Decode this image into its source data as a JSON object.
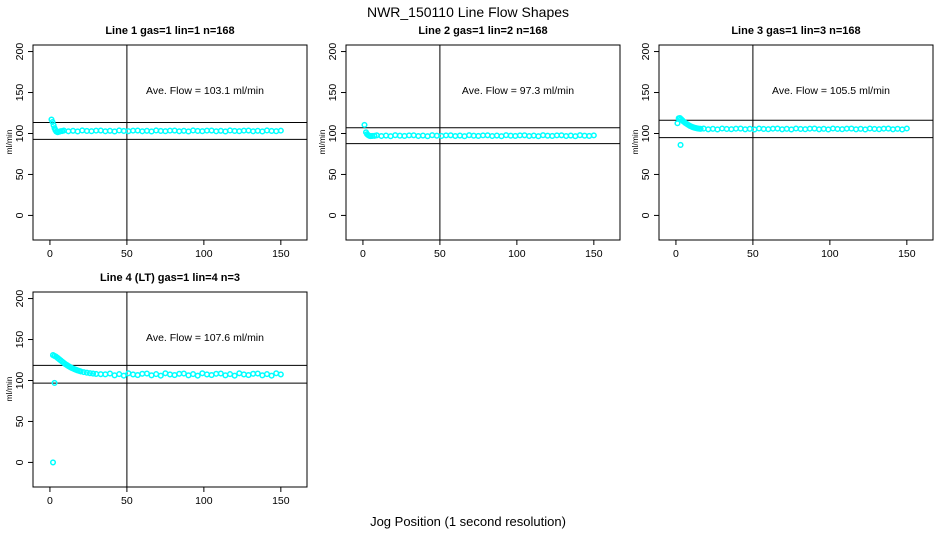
{
  "figure": {
    "title": "NWR_150110  Line Flow Shapes",
    "xlabel": "Jog Position (1 second resolution)",
    "background_color": "#ffffff",
    "point_color": "#00ffff",
    "axis_color": "#000000"
  },
  "chart_data": [
    {
      "type": "scatter",
      "title": "Line 1 gas=1 lin=1 n=168",
      "ylabel": "ml/min",
      "ave_label": "Ave. Flow =  103.1  ml/min",
      "ave_flow": 103.1,
      "n": 168,
      "ref_lines_y": [
        113.4,
        92.8
      ],
      "ref_line_x": 50,
      "xticks": [
        0,
        50,
        100,
        150
      ],
      "yticks": [
        0,
        50,
        100,
        150,
        200
      ],
      "xlim": [
        -11,
        167
      ],
      "ylim": [
        -30,
        208
      ],
      "points": [
        [
          1,
          117
        ],
        [
          1.7,
          114
        ],
        [
          2.4,
          110
        ],
        [
          3,
          106.5
        ],
        [
          3.6,
          104
        ],
        [
          4.2,
          102.3
        ],
        [
          5,
          101.6
        ],
        [
          6,
          102.2
        ],
        [
          7,
          102.8
        ],
        [
          8,
          103
        ],
        [
          9,
          103.6
        ],
        [
          12,
          102.7
        ],
        [
          15,
          103.3
        ],
        [
          18,
          102.5
        ],
        [
          21,
          103.7
        ],
        [
          24,
          103.1
        ],
        [
          27,
          102.8
        ],
        [
          30,
          103.5
        ],
        [
          33,
          103.6
        ],
        [
          36,
          102.7
        ],
        [
          39,
          103.3
        ],
        [
          42,
          102.5
        ],
        [
          45,
          103.7
        ],
        [
          48,
          103.1
        ],
        [
          51,
          102.8
        ],
        [
          54,
          103.5
        ],
        [
          57,
          103.6
        ],
        [
          60,
          102.7
        ],
        [
          63,
          103.3
        ],
        [
          66,
          102.5
        ],
        [
          69,
          103.7
        ],
        [
          72,
          103.1
        ],
        [
          75,
          102.8
        ],
        [
          78,
          103.5
        ],
        [
          81,
          103.6
        ],
        [
          84,
          102.7
        ],
        [
          87,
          103.3
        ],
        [
          90,
          102.5
        ],
        [
          93,
          103.7
        ],
        [
          96,
          103.1
        ],
        [
          99,
          102.8
        ],
        [
          102,
          103.5
        ],
        [
          105,
          103.6
        ],
        [
          108,
          102.7
        ],
        [
          111,
          103.3
        ],
        [
          114,
          102.5
        ],
        [
          117,
          103.7
        ],
        [
          120,
          103.1
        ],
        [
          123,
          102.8
        ],
        [
          126,
          103.5
        ],
        [
          129,
          103.6
        ],
        [
          132,
          102.7
        ],
        [
          135,
          103.3
        ],
        [
          138,
          102.5
        ],
        [
          141,
          103.7
        ],
        [
          144,
          103.1
        ],
        [
          147,
          102.8
        ],
        [
          150,
          103.5
        ]
      ]
    },
    {
      "type": "scatter",
      "title": "Line 2 gas=1 lin=2 n=168",
      "ylabel": "ml/min",
      "ave_label": "Ave. Flow =  97.3  ml/min",
      "ave_flow": 97.3,
      "n": 168,
      "ref_lines_y": [
        107.0,
        87.6
      ],
      "ref_line_x": 50,
      "xticks": [
        0,
        50,
        100,
        150
      ],
      "yticks": [
        0,
        50,
        100,
        150,
        200
      ],
      "xlim": [
        -11,
        167
      ],
      "ylim": [
        -30,
        208
      ],
      "points": [
        [
          1,
          110.5
        ],
        [
          2,
          101.5
        ],
        [
          2.7,
          99.2
        ],
        [
          3.4,
          98
        ],
        [
          4.2,
          97.2
        ],
        [
          5,
          96.8
        ],
        [
          6,
          97
        ],
        [
          7.5,
          97.2
        ],
        [
          9,
          97.8
        ],
        [
          12,
          96.9
        ],
        [
          15,
          97.5
        ],
        [
          18,
          96.7
        ],
        [
          21,
          97.9
        ],
        [
          24,
          97.3
        ],
        [
          27,
          97
        ],
        [
          30,
          97.7
        ],
        [
          33,
          97.8
        ],
        [
          36,
          96.9
        ],
        [
          39,
          97.5
        ],
        [
          42,
          96.7
        ],
        [
          45,
          97.9
        ],
        [
          48,
          97.3
        ],
        [
          51,
          97
        ],
        [
          54,
          97.7
        ],
        [
          57,
          97.8
        ],
        [
          60,
          96.9
        ],
        [
          63,
          97.5
        ],
        [
          66,
          96.7
        ],
        [
          69,
          97.9
        ],
        [
          72,
          97.3
        ],
        [
          75,
          97
        ],
        [
          78,
          97.7
        ],
        [
          81,
          97.8
        ],
        [
          84,
          96.9
        ],
        [
          87,
          97.5
        ],
        [
          90,
          96.7
        ],
        [
          93,
          97.9
        ],
        [
          96,
          97.3
        ],
        [
          99,
          97
        ],
        [
          102,
          97.7
        ],
        [
          105,
          97.8
        ],
        [
          108,
          96.9
        ],
        [
          111,
          97.5
        ],
        [
          114,
          96.7
        ],
        [
          117,
          97.9
        ],
        [
          120,
          97.3
        ],
        [
          123,
          97
        ],
        [
          126,
          97.7
        ],
        [
          129,
          97.8
        ],
        [
          132,
          96.9
        ],
        [
          135,
          97.5
        ],
        [
          138,
          96.7
        ],
        [
          141,
          97.9
        ],
        [
          144,
          97.3
        ],
        [
          147,
          97
        ],
        [
          150,
          97.7
        ]
      ]
    },
    {
      "type": "scatter",
      "title": "Line 3 gas=1 lin=3 n=168",
      "ylabel": "ml/min",
      "ave_label": "Ave. Flow =  105.5  ml/min",
      "ave_flow": 105.5,
      "n": 168,
      "ref_lines_y": [
        116.1,
        95.0
      ],
      "ref_line_x": 50,
      "xticks": [
        0,
        50,
        100,
        150
      ],
      "yticks": [
        0,
        50,
        100,
        150,
        200
      ],
      "xlim": [
        -11,
        167
      ],
      "ylim": [
        -30,
        208
      ],
      "points": [
        [
          1,
          112.5
        ],
        [
          1.8,
          118.5
        ],
        [
          2.6,
          118.8
        ],
        [
          3.4,
          117.5
        ],
        [
          4.2,
          116
        ],
        [
          5,
          114.5
        ],
        [
          6,
          113
        ],
        [
          7,
          111.7
        ],
        [
          8,
          110.5
        ],
        [
          9,
          109.4
        ],
        [
          10,
          108.5
        ],
        [
          11,
          107.7
        ],
        [
          12,
          107.1
        ],
        [
          13,
          106.6
        ],
        [
          14,
          106.2
        ],
        [
          15,
          105.9
        ],
        [
          16,
          105.7
        ],
        [
          3,
          86
        ],
        [
          18,
          106
        ],
        [
          21,
          105.1
        ],
        [
          24,
          105.7
        ],
        [
          27,
          104.9
        ],
        [
          30,
          106.1
        ],
        [
          33,
          105.5
        ],
        [
          36,
          105.2
        ],
        [
          39,
          105.9
        ],
        [
          42,
          106
        ],
        [
          45,
          105.1
        ],
        [
          48,
          105.7
        ],
        [
          51,
          104.9
        ],
        [
          54,
          106.1
        ],
        [
          57,
          105.5
        ],
        [
          60,
          105.2
        ],
        [
          63,
          105.9
        ],
        [
          66,
          106
        ],
        [
          69,
          105.1
        ],
        [
          72,
          105.7
        ],
        [
          75,
          104.9
        ],
        [
          78,
          106.1
        ],
        [
          81,
          105.5
        ],
        [
          84,
          105.2
        ],
        [
          87,
          105.9
        ],
        [
          90,
          106
        ],
        [
          93,
          105.1
        ],
        [
          96,
          105.7
        ],
        [
          99,
          104.9
        ],
        [
          102,
          106.1
        ],
        [
          105,
          105.5
        ],
        [
          108,
          105.2
        ],
        [
          111,
          105.9
        ],
        [
          114,
          106
        ],
        [
          117,
          105.1
        ],
        [
          120,
          105.7
        ],
        [
          123,
          104.9
        ],
        [
          126,
          106.1
        ],
        [
          129,
          105.5
        ],
        [
          132,
          105.2
        ],
        [
          135,
          105.9
        ],
        [
          138,
          106
        ],
        [
          141,
          105.1
        ],
        [
          144,
          105.7
        ],
        [
          147,
          104.9
        ],
        [
          150,
          106.1
        ]
      ]
    },
    {
      "type": "scatter",
      "title": "Line 4 (LT) gas=1 lin=4 n=3",
      "ylabel": "ml/min",
      "ave_label": "Ave. Flow =  107.6  ml/min",
      "ave_flow": 107.6,
      "n": 3,
      "ref_lines_y": [
        118.4,
        96.8
      ],
      "ref_line_x": 50,
      "xticks": [
        0,
        50,
        100,
        150
      ],
      "yticks": [
        0,
        50,
        100,
        150,
        200
      ],
      "xlim": [
        -11,
        167
      ],
      "ylim": [
        -30,
        208
      ],
      "points": [
        [
          2,
          0
        ],
        [
          3,
          97
        ],
        [
          2,
          131
        ],
        [
          3,
          130
        ],
        [
          4,
          129
        ],
        [
          5,
          127.5
        ],
        [
          6,
          126
        ],
        [
          7,
          124.5
        ],
        [
          8,
          123
        ],
        [
          9,
          121.5
        ],
        [
          10,
          120
        ],
        [
          11,
          118.8
        ],
        [
          12,
          117.6
        ],
        [
          13,
          116.5
        ],
        [
          14,
          115.5
        ],
        [
          15,
          114.6
        ],
        [
          16,
          113.8
        ],
        [
          17,
          113
        ],
        [
          18,
          112.3
        ],
        [
          19,
          111.7
        ],
        [
          20,
          111.1
        ],
        [
          22,
          110.2
        ],
        [
          24,
          109.5
        ],
        [
          26,
          108.9
        ],
        [
          28,
          108.4
        ],
        [
          30,
          108
        ],
        [
          33,
          107.7
        ],
        [
          36,
          107.5
        ],
        [
          39,
          108.5
        ],
        [
          42,
          106.3
        ],
        [
          45,
          107.8
        ],
        [
          48,
          105.9
        ],
        [
          51,
          108.8
        ],
        [
          54,
          107.4
        ],
        [
          57,
          106.6
        ],
        [
          60,
          108.2
        ],
        [
          63,
          108.5
        ],
        [
          66,
          106.3
        ],
        [
          69,
          107.8
        ],
        [
          72,
          105.9
        ],
        [
          75,
          108.8
        ],
        [
          78,
          107.4
        ],
        [
          81,
          106.6
        ],
        [
          84,
          108.2
        ],
        [
          87,
          108.5
        ],
        [
          90,
          106.3
        ],
        [
          93,
          107.8
        ],
        [
          96,
          105.9
        ],
        [
          99,
          108.8
        ],
        [
          102,
          107.4
        ],
        [
          105,
          106.6
        ],
        [
          108,
          108.2
        ],
        [
          111,
          108.5
        ],
        [
          114,
          106.3
        ],
        [
          117,
          107.8
        ],
        [
          120,
          105.9
        ],
        [
          123,
          108.8
        ],
        [
          126,
          107.4
        ],
        [
          129,
          106.6
        ],
        [
          132,
          108.2
        ],
        [
          135,
          108.5
        ],
        [
          138,
          106.3
        ],
        [
          141,
          107.8
        ],
        [
          144,
          105.9
        ],
        [
          147,
          108.8
        ],
        [
          150,
          107.4
        ]
      ]
    }
  ]
}
